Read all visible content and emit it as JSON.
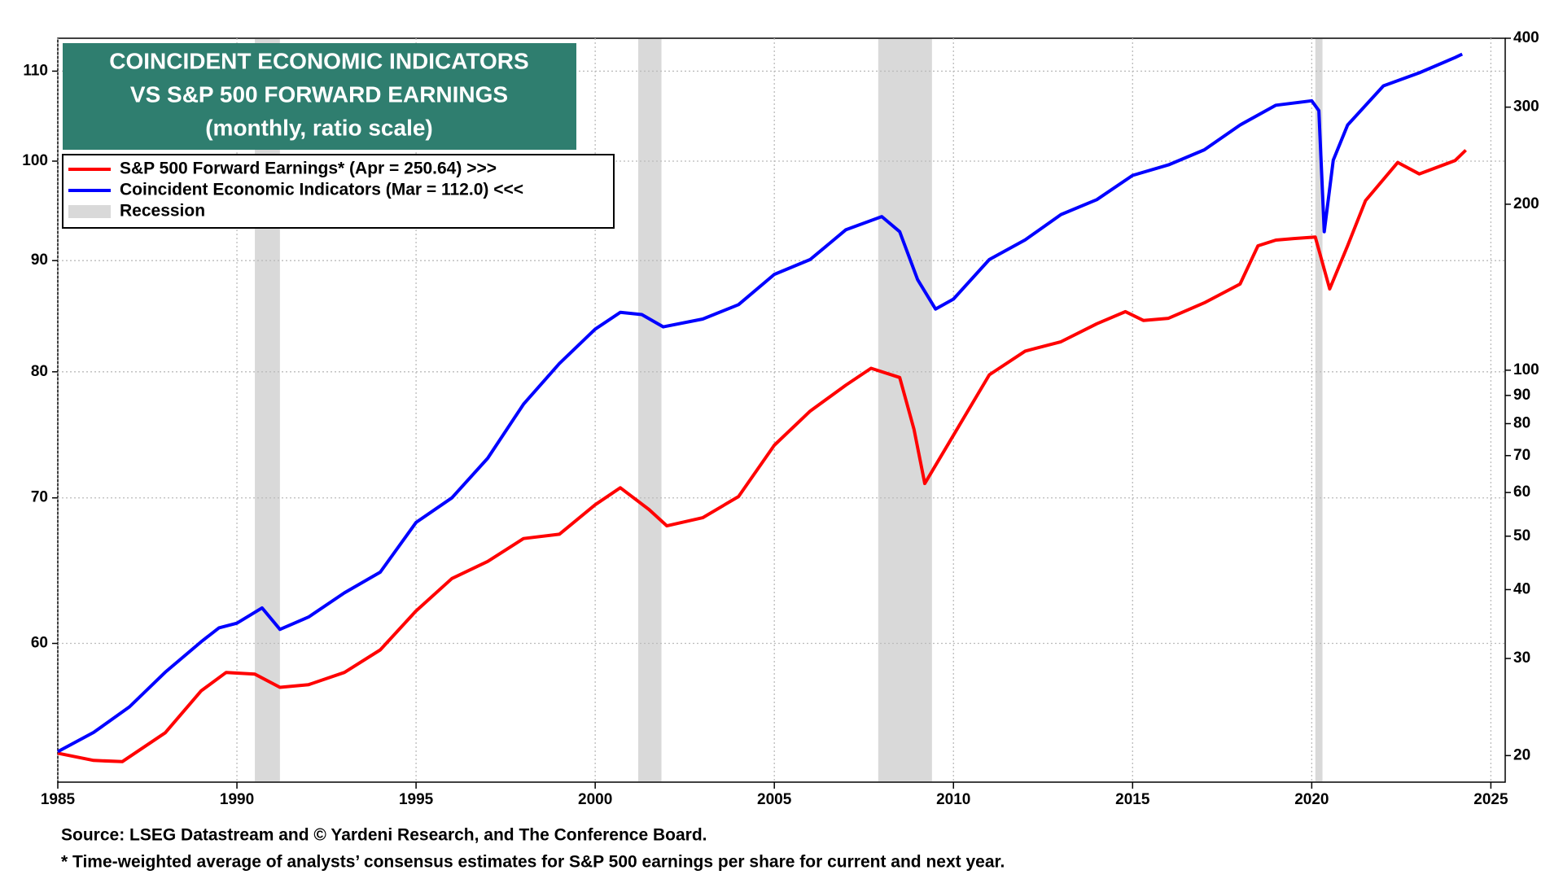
{
  "chart_data": {
    "type": "line",
    "title": [
      "COINCIDENT ECONOMIC  INDICATORS",
      "VS S&P 500 FORWARD EARNINGS",
      "(monthly, ratio scale)"
    ],
    "footnotes": [
      "Source: LSEG Datastream and © Yardeni Research, and The Conference Board.",
      "* Time-weighted average of analysts’ consensus estimates for S&P 500 earnings per share for current and next year."
    ],
    "recession_label": "Recession",
    "recession_color": "#d9d9d9",
    "recessions": [
      [
        1990.5,
        1991.2
      ],
      [
        2001.2,
        2001.85
      ],
      [
        2007.9,
        2009.4
      ],
      [
        2020.1,
        2020.3
      ]
    ],
    "xlim": [
      1985,
      2025.4
    ],
    "xticks": [
      1985,
      1990,
      1995,
      2000,
      2005,
      2010,
      2015,
      2020,
      2025
    ],
    "ylim": [
      51.8,
      113.9
    ],
    "yticks": [
      60,
      70,
      80,
      90,
      100,
      110
    ],
    "y2lim": [
      17.9,
      400
    ],
    "y2ticks": [
      20,
      30,
      40,
      50,
      60,
      70,
      80,
      90,
      100,
      200,
      300,
      400
    ],
    "log_scale": true,
    "grid": true,
    "series": [
      {
        "name": "S&P 500 Forward Earnings* (Apr = 250.64) >>>",
        "color": "#ff0000",
        "axis": "y2",
        "x": [
          1985.0,
          1986.0,
          1986.8,
          1988.0,
          1989.0,
          1989.7,
          1990.5,
          1991.2,
          1992.0,
          1993.0,
          1994.0,
          1995.0,
          1996.0,
          1997.0,
          1998.0,
          1999.0,
          2000.0,
          2000.7,
          2001.5,
          2002.0,
          2003.0,
          2004.0,
          2005.0,
          2006.0,
          2007.0,
          2007.7,
          2008.5,
          2008.9,
          2009.2,
          2010.0,
          2011.0,
          2012.0,
          2013.0,
          2014.0,
          2014.8,
          2015.3,
          2016.0,
          2017.0,
          2018.0,
          2018.5,
          2019.0,
          2019.5,
          2020.1,
          2020.5,
          2021.0,
          2021.5,
          2022.4,
          2023.0,
          2024.0,
          2024.3
        ],
        "values": [
          20.2,
          19.6,
          19.5,
          22.0,
          26.2,
          28.3,
          28.1,
          26.6,
          26.9,
          28.3,
          31.1,
          36.6,
          41.9,
          45.0,
          49.5,
          50.4,
          57.0,
          61.2,
          55.9,
          52.2,
          54.0,
          59.0,
          73.1,
          84.3,
          94.0,
          100.8,
          97.0,
          78.1,
          62.3,
          76.2,
          98.1,
          108.3,
          112.6,
          121.4,
          127.7,
          123.1,
          124.2,
          132.5,
          143.3,
          168.1,
          172.2,
          173.3,
          174.4,
          140.4,
          168.1,
          203.0,
          238.1,
          227.0,
          240.0,
          250.64
        ]
      },
      {
        "name": "Coincident Economic Indicators (Mar = 112.0) <<<",
        "color": "#0000ff",
        "axis": "y",
        "x": [
          1985.0,
          1986.0,
          1987.0,
          1988.0,
          1989.0,
          1989.5,
          1990.0,
          1990.7,
          1991.2,
          1992.0,
          1993.0,
          1994.0,
          1995.0,
          1996.0,
          1997.0,
          1998.0,
          1999.0,
          2000.0,
          2000.7,
          2001.3,
          2001.9,
          2003.0,
          2004.0,
          2005.0,
          2006.0,
          2007.0,
          2008.0,
          2008.5,
          2009.0,
          2009.5,
          2010.0,
          2011.0,
          2012.0,
          2013.0,
          2014.0,
          2015.0,
          2016.0,
          2017.0,
          2018.0,
          2019.0,
          2020.0,
          2020.2,
          2020.35,
          2020.6,
          2021.0,
          2022.0,
          2023.0,
          2024.0,
          2024.2
        ],
        "values": [
          53.5,
          54.6,
          56.1,
          58.2,
          60.1,
          61.0,
          61.3,
          62.3,
          60.9,
          61.7,
          63.3,
          64.7,
          68.2,
          70.0,
          73.0,
          77.3,
          80.7,
          83.7,
          85.2,
          85.0,
          83.9,
          84.6,
          85.9,
          88.7,
          90.1,
          93.0,
          94.3,
          92.8,
          88.2,
          85.5,
          86.4,
          90.1,
          92.0,
          94.5,
          96.0,
          98.5,
          99.6,
          101.2,
          103.9,
          106.1,
          106.6,
          105.5,
          92.8,
          100.1,
          103.9,
          108.3,
          109.8,
          111.6,
          112.0
        ]
      }
    ]
  }
}
